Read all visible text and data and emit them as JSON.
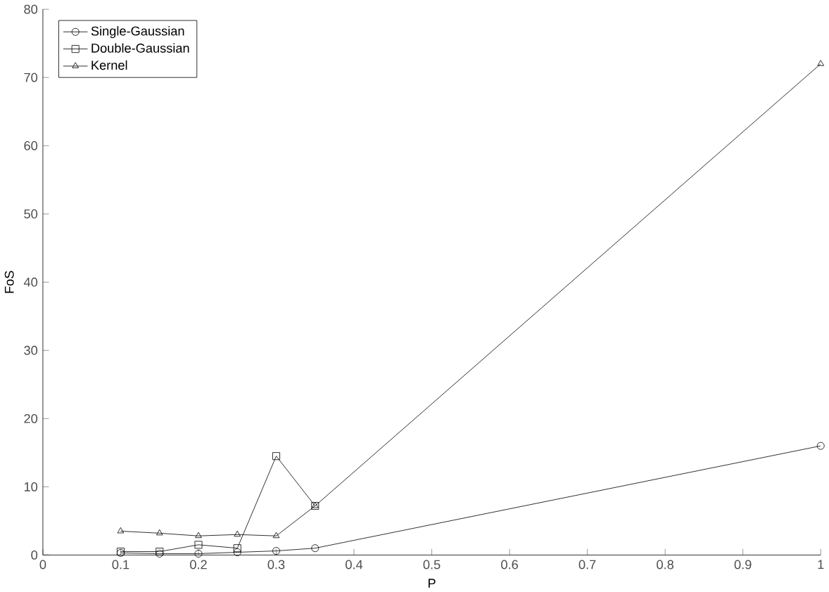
{
  "chart_data": {
    "type": "line",
    "xlabel": "P",
    "ylabel": "FoS",
    "x": [
      0.1,
      0.15,
      0.2,
      0.25,
      0.3,
      0.35,
      1
    ],
    "series": [
      {
        "name": "Single-Gaussian",
        "color": "#000000",
        "marker": "circle",
        "values": [
          0.3,
          0.2,
          0.2,
          0.4,
          0.6,
          1.0,
          16
        ]
      },
      {
        "name": "Double-Gaussian",
        "color": "#000000",
        "marker": "square",
        "values": [
          0.5,
          0.5,
          1.5,
          1.0,
          14.5,
          7.2,
          null
        ]
      },
      {
        "name": "Kernel",
        "color": "#000000",
        "marker": "triangle",
        "values": [
          3.5,
          3.2,
          2.8,
          3.0,
          2.8,
          7.2,
          72
        ]
      }
    ],
    "xlim": [
      0,
      1
    ],
    "xticks": [
      0,
      0.1,
      0.2,
      0.3,
      0.4,
      0.5,
      0.6,
      0.7,
      0.8,
      0.9,
      1
    ],
    "ylim": [
      0,
      80
    ],
    "yticks": [
      0,
      10,
      20,
      30,
      40,
      50,
      60,
      70,
      80
    ],
    "legend": "top left",
    "grid": false,
    "line_style": "solid"
  }
}
